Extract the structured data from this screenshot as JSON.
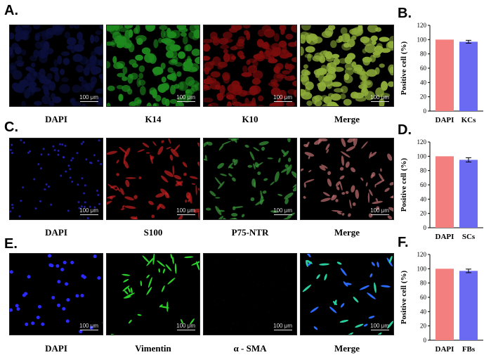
{
  "panels": {
    "A": "A.",
    "B": "B.",
    "C": "C.",
    "D": "D.",
    "E": "E.",
    "F": "F."
  },
  "rows": [
    {
      "labels": [
        "DAPI",
        "K14",
        "K10",
        "Merge"
      ],
      "scale": "100 μm",
      "colors": [
        "#0b0f3a",
        "#1e8a1e",
        "#7a0c0c",
        "#8fae3a"
      ]
    },
    {
      "labels": [
        "DAPI",
        "S100",
        "P75-NTR",
        "Merge"
      ],
      "scale": "100 μm",
      "colors": [
        "#04051a",
        "#3a0606",
        "#1b4a1a",
        "#4a3030"
      ]
    },
    {
      "labels": [
        "DAPI",
        "Vimentin",
        "α - SMA",
        "Merge"
      ],
      "scale": "100 μm",
      "colors": [
        "#02030f",
        "#040b04",
        "#030303",
        "#040609"
      ]
    }
  ],
  "chart_data": [
    {
      "type": "bar",
      "categories": [
        "DAPI",
        "KCs"
      ],
      "values": [
        100,
        97
      ],
      "errors": [
        0,
        2
      ],
      "colors": [
        "#f47f7f",
        "#6a6af2"
      ],
      "ylabel": "Positive cell  (%)",
      "ylim": [
        0,
        120
      ],
      "yticks": [
        "0",
        "20",
        "40",
        "60",
        "80",
        "100",
        "120"
      ]
    },
    {
      "type": "bar",
      "categories": [
        "DAPI",
        "SCs"
      ],
      "values": [
        100,
        95
      ],
      "errors": [
        0,
        3
      ],
      "colors": [
        "#f47f7f",
        "#6a6af2"
      ],
      "ylabel": "Positive cell  (%)",
      "ylim": [
        0,
        120
      ],
      "yticks": [
        "0",
        "20",
        "40",
        "60",
        "80",
        "100",
        "120"
      ]
    },
    {
      "type": "bar",
      "categories": [
        "DAPI",
        "FBs"
      ],
      "values": [
        100,
        97
      ],
      "errors": [
        0,
        2.5
      ],
      "colors": [
        "#f47f7f",
        "#6a6af2"
      ],
      "ylabel": "Positive cell  (%)",
      "ylim": [
        0,
        120
      ],
      "yticks": [
        "0",
        "20",
        "40",
        "60",
        "80",
        "100",
        "120"
      ]
    }
  ]
}
